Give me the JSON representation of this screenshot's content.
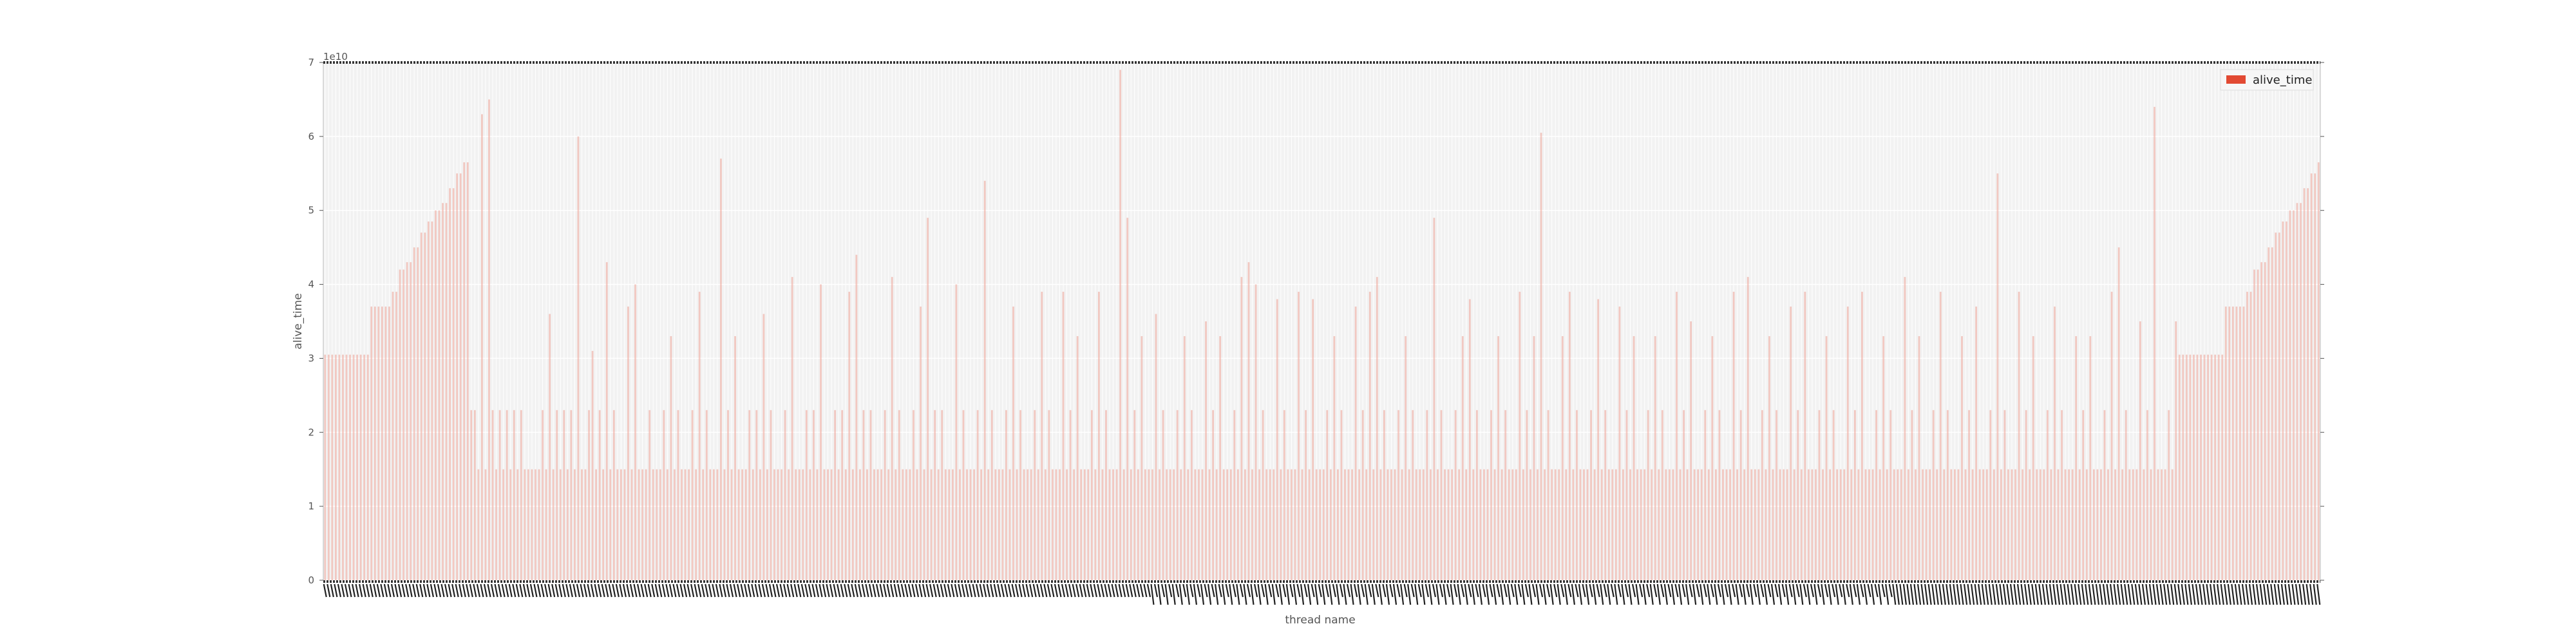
{
  "chart_data": {
    "type": "bar",
    "title": "",
    "xlabel": "thread name",
    "ylabel": "alive_time",
    "y_offset_label": "1e10",
    "ylim": [
      0,
      7
    ],
    "y_ticks": [
      "0",
      "1",
      "2",
      "3",
      "4",
      "5",
      "6",
      "7"
    ],
    "grid": true,
    "legend_position": "top-right",
    "n_bars": 560,
    "series": [
      {
        "name": "alive_time",
        "color": "#e24a33",
        "values": [
          3.05,
          3.05,
          3.05,
          3.05,
          3.05,
          3.05,
          3.05,
          3.05,
          3.05,
          3.05,
          3.05,
          3.05,
          3.05,
          3.7,
          3.7,
          3.7,
          3.7,
          3.7,
          3.7,
          3.9,
          3.9,
          4.2,
          4.2,
          4.3,
          4.3,
          4.5,
          4.5,
          4.7,
          4.7,
          4.85,
          4.85,
          5.0,
          5.0,
          5.1,
          5.1,
          5.3,
          5.3,
          5.5,
          5.5,
          5.65,
          5.65,
          2.3,
          2.3,
          1.5,
          6.3,
          1.5,
          6.5,
          2.3,
          1.5,
          2.3,
          1.5,
          2.3,
          1.5,
          2.3,
          1.5,
          2.3,
          1.5,
          1.5,
          1.5,
          1.5,
          1.5,
          2.3,
          1.5,
          3.6,
          1.5,
          2.3,
          1.5,
          2.3,
          1.5,
          2.3,
          1.5,
          6.0,
          1.5,
          1.5,
          2.3,
          3.1,
          1.5,
          2.3,
          1.5,
          4.3,
          1.5,
          2.3,
          1.5,
          1.5,
          1.5,
          3.7,
          1.5,
          4.0,
          1.5,
          1.5,
          1.5,
          2.3,
          1.5,
          1.5,
          1.5,
          2.3,
          1.5,
          3.3,
          1.5,
          2.3,
          1.5,
          1.5,
          1.5,
          2.3,
          1.5,
          3.9,
          1.5,
          2.3,
          1.5,
          1.5,
          1.5,
          5.7,
          1.5,
          2.3,
          1.5,
          3.3,
          1.5,
          1.5,
          1.5,
          2.3,
          1.5,
          2.3,
          1.5,
          3.6,
          1.5,
          2.3,
          1.5,
          1.5,
          1.5,
          2.3,
          1.5,
          4.1,
          1.5,
          1.5,
          1.5,
          2.3,
          1.5,
          2.3,
          1.5,
          4.0,
          1.5,
          1.5,
          1.5,
          2.3,
          1.5,
          2.3,
          1.5,
          3.9,
          1.5,
          4.4,
          1.5,
          2.3,
          1.5,
          2.3,
          1.5,
          1.5,
          1.5,
          2.3,
          1.5,
          4.1,
          1.5,
          2.3,
          1.5,
          1.5,
          1.5,
          2.3,
          1.5,
          3.7,
          1.5,
          4.9,
          1.5,
          2.3,
          1.5,
          2.3,
          1.5,
          1.5,
          1.5,
          4.0,
          1.5,
          2.3,
          1.5,
          1.5,
          1.5,
          2.3,
          1.5,
          5.4,
          1.5,
          2.3,
          1.5,
          1.5,
          1.5,
          2.3,
          1.5,
          3.7,
          1.5,
          2.3,
          1.5,
          1.5,
          1.5,
          2.3,
          1.5,
          3.9,
          1.5,
          2.3,
          1.5,
          1.5,
          1.5,
          3.9,
          1.5,
          2.3,
          1.5,
          3.3,
          1.5,
          1.5,
          1.5,
          2.3,
          1.5,
          3.9,
          1.5,
          2.3,
          1.5,
          1.5,
          1.5,
          6.9,
          1.5,
          4.9,
          1.5,
          2.3,
          1.5,
          3.3,
          1.5,
          1.5,
          1.5,
          3.6,
          1.5,
          2.3,
          1.5,
          1.5,
          1.5,
          2.3,
          1.5,
          3.3,
          1.5,
          2.3,
          1.5,
          1.5,
          1.5,
          3.5,
          1.5,
          2.3,
          1.5,
          3.3,
          1.5,
          1.5,
          1.5,
          2.3,
          1.5,
          4.1,
          1.5,
          4.3,
          1.5,
          4.0,
          1.5,
          2.3,
          1.5,
          1.5,
          1.5,
          3.8,
          1.5,
          2.3,
          1.5,
          1.5,
          1.5,
          3.9,
          1.5,
          2.3,
          1.5,
          3.8,
          1.5,
          1.5,
          1.5,
          2.3,
          1.5,
          3.3,
          1.5,
          2.3,
          1.5,
          1.5,
          1.5,
          3.7,
          1.5,
          2.3,
          1.5,
          3.9,
          1.5,
          4.1,
          1.5,
          2.3,
          1.5,
          1.5,
          1.5,
          2.3,
          1.5,
          3.3,
          1.5,
          2.3,
          1.5,
          1.5,
          1.5,
          2.3,
          1.5,
          4.9,
          1.5,
          2.3,
          1.5,
          1.5,
          1.5,
          2.3,
          1.5,
          3.3,
          1.5,
          3.8,
          1.5,
          2.3,
          1.5,
          1.5,
          1.5,
          2.3,
          1.5,
          3.3,
          1.5,
          2.3,
          1.5,
          1.5,
          1.5,
          3.9,
          1.5,
          2.3,
          1.5,
          3.3,
          1.5,
          6.05,
          1.5,
          2.3,
          1.5,
          1.5,
          1.5,
          3.3,
          1.5,
          3.9,
          1.5,
          2.3,
          1.5,
          1.5,
          1.5,
          2.3,
          1.5,
          3.8,
          1.5,
          2.3,
          1.5,
          1.5,
          1.5,
          3.7,
          1.5,
          2.3,
          1.5,
          3.3,
          1.5,
          1.5,
          1.5,
          2.3,
          1.5,
          3.3,
          1.5,
          2.3,
          1.5,
          1.5,
          1.5,
          3.9,
          1.5,
          2.3,
          1.5,
          3.5,
          1.5,
          1.5,
          1.5,
          2.3,
          1.5,
          3.3,
          1.5,
          2.3,
          1.5,
          1.5,
          1.5,
          3.9,
          1.5,
          2.3,
          1.5,
          4.1,
          1.5,
          1.5,
          1.5,
          2.3,
          1.5,
          3.3,
          1.5,
          2.3,
          1.5,
          1.5,
          1.5,
          3.7,
          1.5,
          2.3,
          1.5,
          3.9,
          1.5,
          1.5,
          1.5,
          2.3,
          1.5,
          3.3,
          1.5,
          2.3,
          1.5,
          1.5,
          1.5,
          3.7,
          1.5,
          2.3,
          1.5,
          3.9,
          1.5,
          1.5,
          1.5,
          2.3,
          1.5,
          3.3,
          1.5,
          2.3,
          1.5,
          1.5,
          1.5,
          4.1,
          1.5,
          2.3,
          1.5,
          3.3,
          1.5,
          1.5,
          1.5,
          2.3,
          1.5,
          3.9,
          1.5,
          2.3,
          1.5,
          1.5,
          1.5,
          3.3,
          1.5,
          2.3,
          1.5,
          3.7,
          1.5,
          1.5,
          1.5,
          2.3,
          1.5,
          5.5,
          1.5,
          2.3,
          1.5,
          1.5,
          1.5,
          3.9,
          1.5,
          2.3,
          1.5,
          3.3,
          1.5,
          1.5,
          1.5,
          2.3,
          1.5,
          3.7,
          1.5,
          2.3,
          1.5,
          1.5,
          1.5,
          3.3,
          1.5,
          2.3,
          1.5,
          3.3,
          1.5,
          1.5,
          1.5,
          2.3,
          1.5,
          3.9,
          1.5,
          4.5,
          1.5,
          2.3,
          1.5,
          1.5,
          1.5,
          3.5,
          1.5,
          2.3,
          1.5,
          6.4,
          1.5,
          1.5,
          1.5,
          2.3,
          1.5,
          3.5
        ]
      }
    ]
  }
}
